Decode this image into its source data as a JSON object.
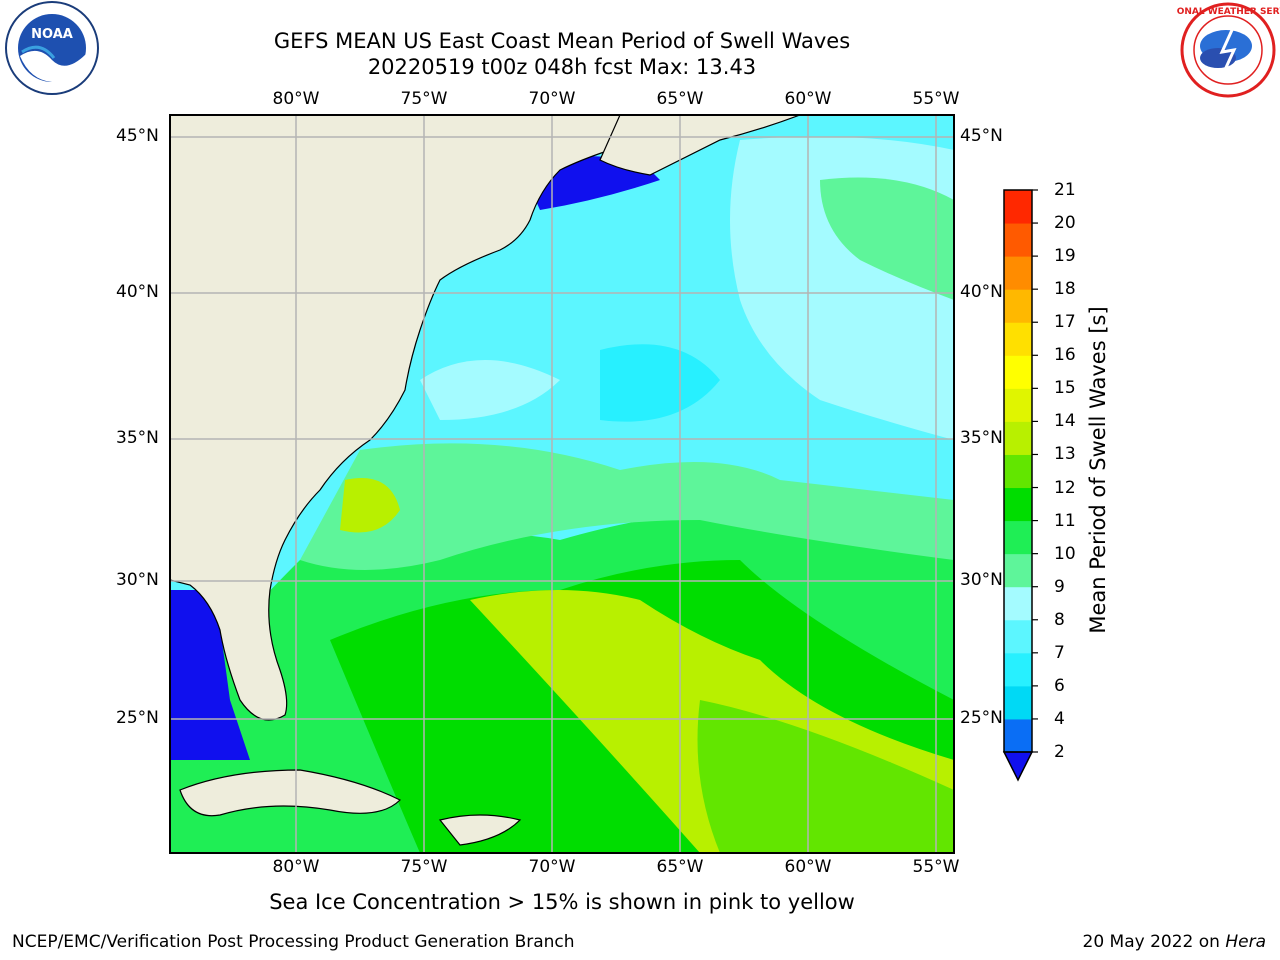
{
  "title_line1": "GEFS MEAN US East Coast Mean Period of Swell Waves",
  "title_line2": "20220519 t00z 048h fcst   Max: 13.43",
  "lon_labels": [
    "80°W",
    "75°W",
    "70°W",
    "65°W",
    "60°W",
    "55°W"
  ],
  "lat_labels": [
    "45°N",
    "40°N",
    "35°N",
    "30°N",
    "25°N"
  ],
  "colorbar": {
    "label": "Mean Period of Swell Waves [s]",
    "ticks": [
      "2",
      "4",
      "6",
      "7",
      "8",
      "9",
      "10",
      "11",
      "12",
      "13",
      "14",
      "15",
      "16",
      "17",
      "18",
      "19",
      "20",
      "21"
    ],
    "colors": [
      "#0a6ef5",
      "#00d9f5",
      "#27f0ff",
      "#5cf6ff",
      "#a4fbff",
      "#5ef59a",
      "#1fee55",
      "#00dd00",
      "#62e600",
      "#b8f000",
      "#e0f500",
      "#ffff00",
      "#ffe000",
      "#ffb800",
      "#ff8c00",
      "#ff5a00",
      "#ff2800"
    ],
    "extend_color": "#1010ee"
  },
  "caption": "Sea Ice Concentration > 15% is shown in pink to yellow",
  "footer_left": "NCEP/EMC/Verification Post Processing Product Generation Branch",
  "footer_right_date": "20 May 2022 on",
  "footer_right_host": "Hera",
  "logos": {
    "noaa": "NOAA",
    "nws": "NATIONAL WEATHER SERVICE"
  },
  "colors": {
    "land": "#eeeddc",
    "grid": "#b4b4b4",
    "frame": "#000000"
  }
}
